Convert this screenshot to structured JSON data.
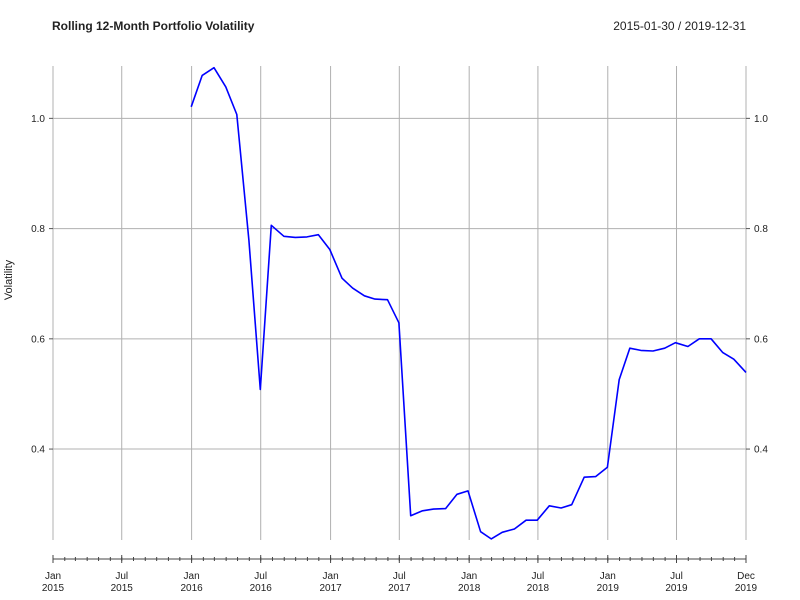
{
  "chart_data": {
    "type": "line",
    "title": "Rolling 12-Month Portfolio Volatility",
    "date_range_label": "2015-01-30 / 2019-12-31",
    "ylabel": "Volatility",
    "xlabel": "",
    "ylim": [
      0.235,
      1.095
    ],
    "xlim": [
      "2015-01-01",
      "2019-12-31"
    ],
    "y_ticks": [
      "0.4",
      "0.6",
      "0.8",
      "1.0"
    ],
    "y_tick_values": [
      0.4,
      0.6,
      0.8,
      1.0
    ],
    "x_ticks": [
      {
        "date": "2015-01-01",
        "line1": "Jan",
        "line2": "2015"
      },
      {
        "date": "2015-07-01",
        "line1": "Jul",
        "line2": "2015"
      },
      {
        "date": "2016-01-01",
        "line1": "Jan",
        "line2": "2016"
      },
      {
        "date": "2016-07-01",
        "line1": "Jul",
        "line2": "2016"
      },
      {
        "date": "2017-01-01",
        "line1": "Jan",
        "line2": "2017"
      },
      {
        "date": "2017-07-01",
        "line1": "Jul",
        "line2": "2017"
      },
      {
        "date": "2018-01-01",
        "line1": "Jan",
        "line2": "2018"
      },
      {
        "date": "2018-07-01",
        "line1": "Jul",
        "line2": "2018"
      },
      {
        "date": "2019-01-01",
        "line1": "Jan",
        "line2": "2019"
      },
      {
        "date": "2019-07-01",
        "line1": "Jul",
        "line2": "2019"
      },
      {
        "date": "2019-12-31",
        "line1": "Dec",
        "line2": "2019"
      }
    ],
    "grid": true,
    "line_color": "#0000ff",
    "grid_color": "#b0b0b0",
    "series": [
      {
        "x": [
          "2015-12-31",
          "2016-01-29",
          "2016-02-29",
          "2016-03-31",
          "2016-04-29",
          "2016-05-31",
          "2016-06-30",
          "2016-07-29",
          "2016-08-31",
          "2016-09-30",
          "2016-10-31",
          "2016-11-30",
          "2016-12-30",
          "2017-01-31",
          "2017-02-28",
          "2017-03-31",
          "2017-04-28",
          "2017-05-31",
          "2017-06-30",
          "2017-07-31",
          "2017-08-31",
          "2017-09-29",
          "2017-10-31",
          "2017-11-30",
          "2017-12-29",
          "2018-01-31",
          "2018-02-28",
          "2018-03-29",
          "2018-04-30",
          "2018-05-31",
          "2018-06-29",
          "2018-07-31",
          "2018-08-31",
          "2018-09-28",
          "2018-10-31",
          "2018-11-30",
          "2018-12-31",
          "2019-01-31",
          "2019-02-28",
          "2019-03-29",
          "2019-04-30",
          "2019-05-31",
          "2019-06-28",
          "2019-07-31",
          "2019-08-30",
          "2019-09-30",
          "2019-10-31",
          "2019-11-29",
          "2019-12-31"
        ],
        "values": [
          1.021,
          1.078,
          1.092,
          1.057,
          1.007,
          0.779,
          0.508,
          0.806,
          0.786,
          0.784,
          0.785,
          0.789,
          0.762,
          0.71,
          0.692,
          0.678,
          0.672,
          0.671,
          0.629,
          0.279,
          0.288,
          0.291,
          0.292,
          0.318,
          0.324,
          0.25,
          0.237,
          0.249,
          0.255,
          0.271,
          0.271,
          0.297,
          0.293,
          0.299,
          0.349,
          0.35,
          0.367,
          0.526,
          0.583,
          0.579,
          0.578,
          0.583,
          0.593,
          0.586,
          0.6,
          0.6,
          0.575,
          0.563,
          0.539
        ]
      }
    ]
  }
}
